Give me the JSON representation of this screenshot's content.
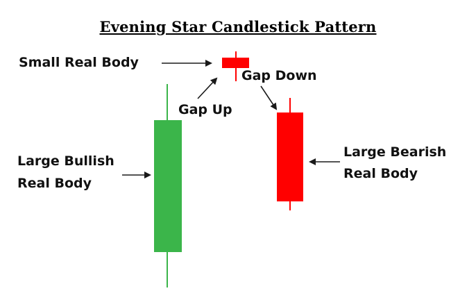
{
  "title": "Evening Star Candlestick Pattern",
  "labels": {
    "small_real_body": "Small Real Body",
    "gap_up": "Gap Up",
    "gap_down": "Gap Down",
    "large_bullish_line1": "Large Bullish",
    "large_bullish_line2": "Real Body",
    "large_bearish_line1": "Large Bearish",
    "large_bearish_line2": "Real Body"
  },
  "colors": {
    "bullish": "#3bb54a",
    "bearish": "#ff0000",
    "arrow": "#1a1a1a"
  }
}
